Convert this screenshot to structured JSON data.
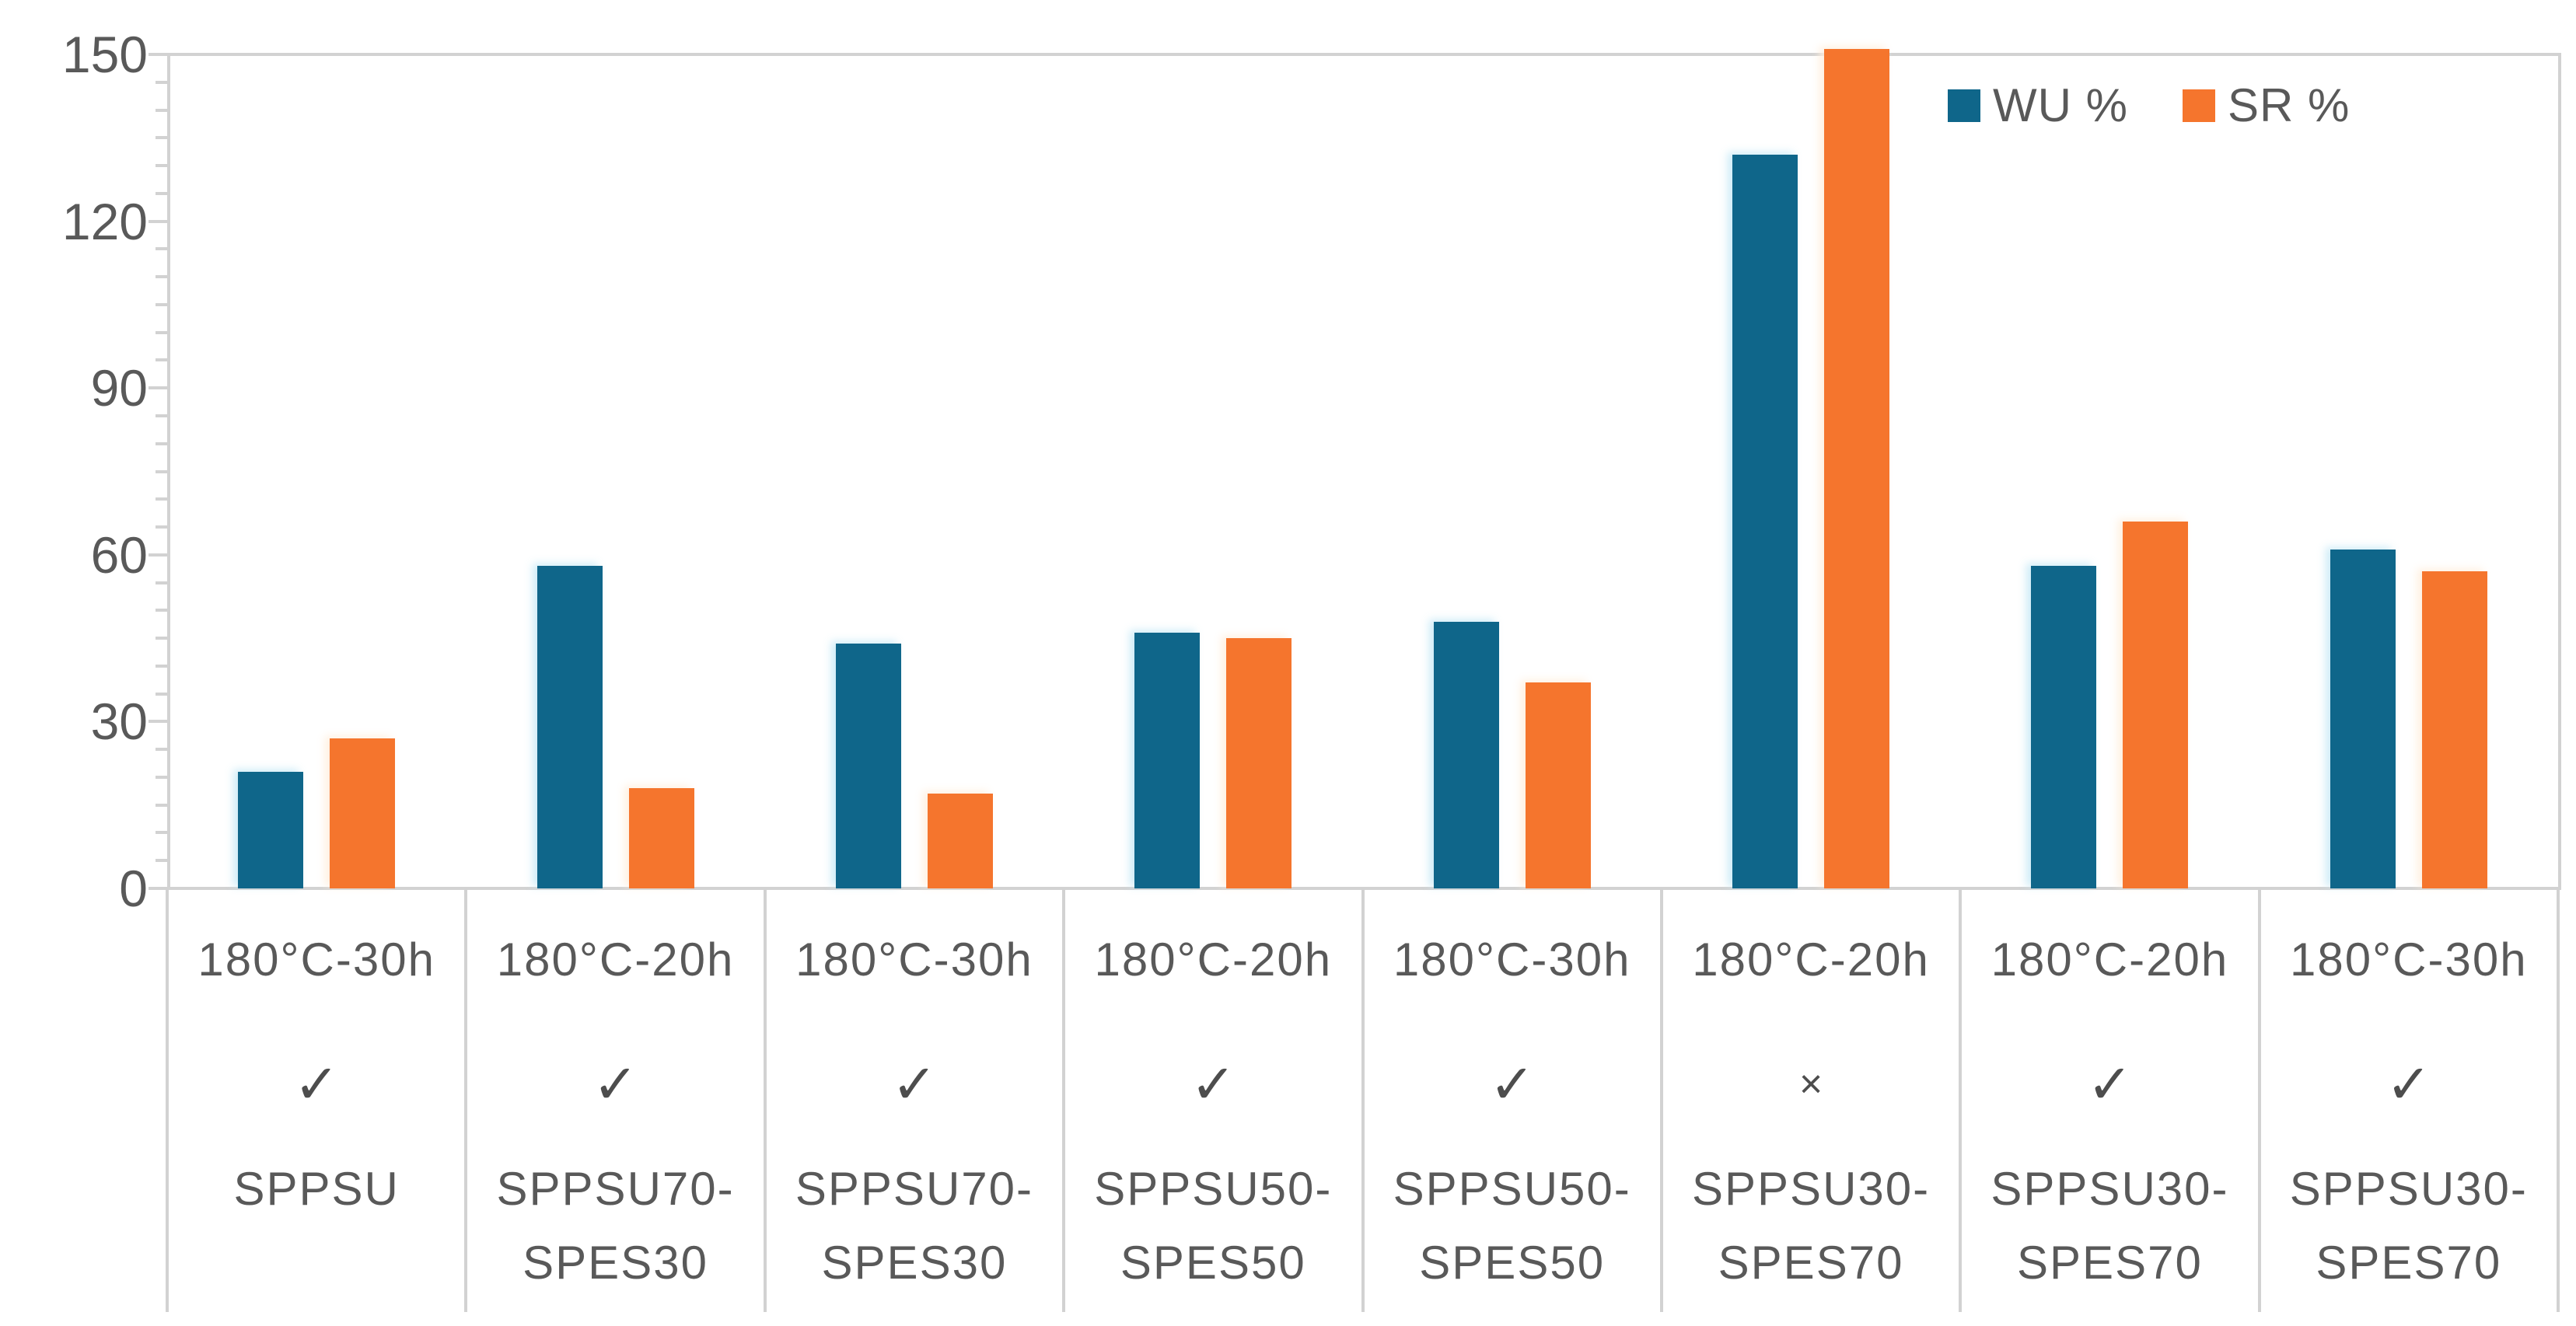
{
  "chart_data": {
    "type": "bar",
    "title": "",
    "xlabel": "",
    "ylabel": "",
    "ylim": [
      0,
      150
    ],
    "ytick_interval_major": 30,
    "ytick_interval_minor": 5,
    "ytick_labels": [
      "0",
      "30",
      "60",
      "90",
      "120",
      "150"
    ],
    "grid": "none",
    "legend_position": "top-right-inside",
    "categories": [
      {
        "condition": "180°C-30h",
        "mark": "✓",
        "name_lines": [
          "SPPSU"
        ]
      },
      {
        "condition": "180°C-20h",
        "mark": "✓",
        "name_lines": [
          "SPPSU70-",
          "SPES30"
        ]
      },
      {
        "condition": "180°C-30h",
        "mark": "✓",
        "name_lines": [
          "SPPSU70-",
          "SPES30"
        ]
      },
      {
        "condition": "180°C-20h",
        "mark": "✓",
        "name_lines": [
          "SPPSU50-",
          "SPES50"
        ]
      },
      {
        "condition": "180°C-30h",
        "mark": "✓",
        "name_lines": [
          "SPPSU50-",
          "SPES50"
        ]
      },
      {
        "condition": "180°C-20h",
        "mark": "×",
        "name_lines": [
          "SPPSU30-",
          "SPES70"
        ]
      },
      {
        "condition": "180°C-20h",
        "mark": "✓",
        "name_lines": [
          "SPPSU30-",
          "SPES70"
        ]
      },
      {
        "condition": "180°C-30h",
        "mark": "✓",
        "name_lines": [
          "SPPSU30-",
          "SPES70"
        ]
      }
    ],
    "series": [
      {
        "name": "WU %",
        "color": "#0F668A",
        "values": [
          21,
          58,
          44,
          46,
          48,
          132,
          58,
          61
        ]
      },
      {
        "name": "SR %",
        "color": "#F5752D",
        "values": [
          27,
          18,
          17,
          45,
          37,
          151,
          66,
          57
        ]
      }
    ],
    "notes": "The SR % bar of the sixth group (SPPSU30-SPES70, 180°C-20h, ×) exceeds the 150 axis maximum and is visually clipped at the top of the chart."
  },
  "colors": {
    "axis_line": "#d2d2d2",
    "text": "#595959"
  }
}
